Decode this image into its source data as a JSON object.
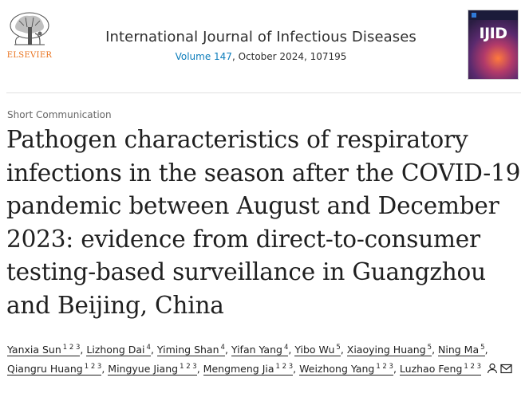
{
  "header": {
    "publisher": "ELSEVIER",
    "journal_title": "International Journal of Infectious Diseases",
    "volume_link": "Volume 147",
    "volume_rest": ", October 2024, 107195",
    "cover_title": "IJID",
    "logo_icon": "elsevier-tree-logo",
    "cover_icon": "journal-cover-image"
  },
  "article": {
    "type": "Short Communication",
    "title": "Pathogen characteristics of respiratory infections in the season after the COVID-19 pandemic between August and December 2023: evidence from direct-to-consumer testing-based surveillance in Guangzhou and Beijing, China"
  },
  "authors": [
    {
      "name": "Yanxia Sun",
      "sup": "1 2 3"
    },
    {
      "name": "Lizhong Dai",
      "sup": "4"
    },
    {
      "name": "Yiming Shan",
      "sup": "4"
    },
    {
      "name": "Yifan Yang",
      "sup": "4"
    },
    {
      "name": "Yibo Wu",
      "sup": "5"
    },
    {
      "name": "Xiaoying Huang",
      "sup": "5"
    },
    {
      "name": "Ning Ma",
      "sup": "5"
    },
    {
      "name": "Qiangru Huang",
      "sup": "1 2 3"
    },
    {
      "name": "Mingyue Jiang",
      "sup": "1 2 3"
    },
    {
      "name": "Mengmeng Jia",
      "sup": "1 2 3"
    },
    {
      "name": "Weizhong Yang",
      "sup": "1 2 3"
    },
    {
      "name": "Luzhao Feng",
      "sup": "1 2 3"
    }
  ],
  "author_icons": [
    "person-icon",
    "envelope-icon"
  ],
  "colors": {
    "link": "#0c7dbb",
    "elsevier_orange": "#e9711c",
    "text": "#1f1f1f"
  }
}
